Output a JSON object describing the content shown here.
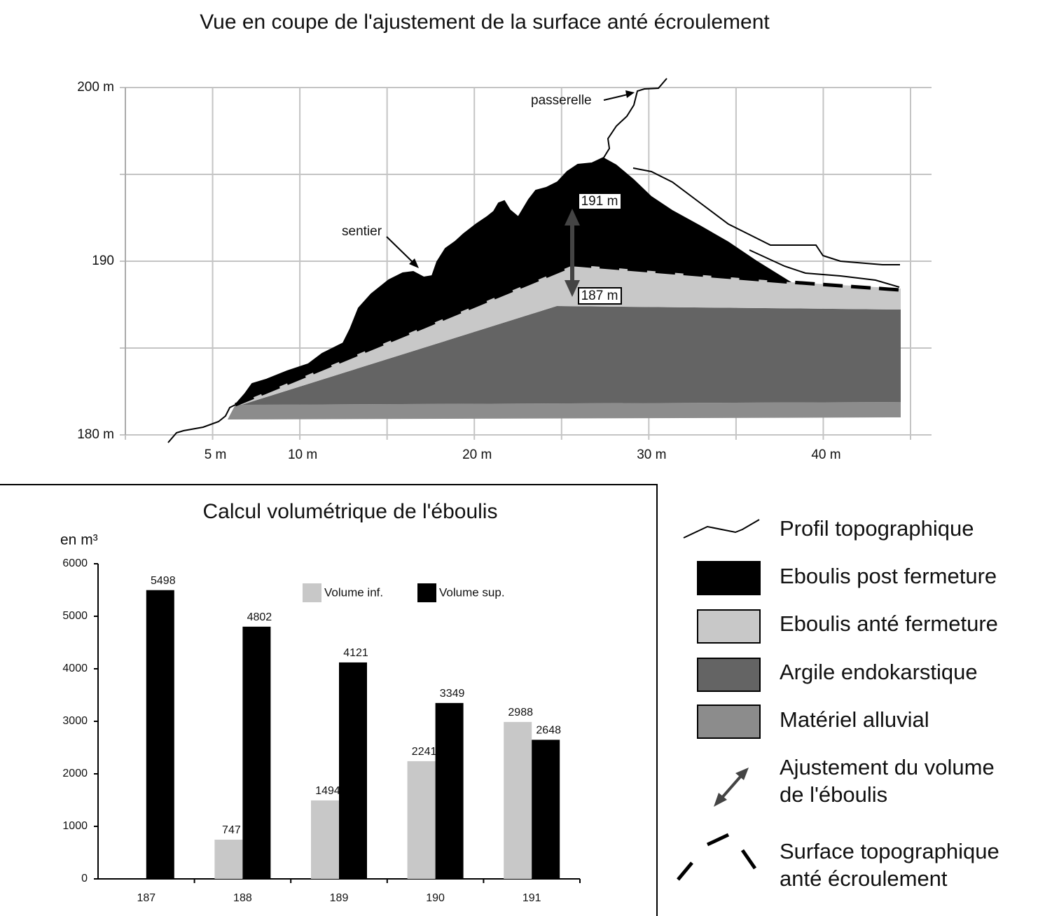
{
  "chart_data": [
    {
      "type": "section",
      "title": "Vue en coupe de l'ajustement de la surface anté écroulement",
      "labels": [
        "passerelle",
        "sentier",
        "191 m",
        "187 m"
      ],
      "xlim": [
        0,
        45
      ],
      "ylim": [
        180,
        200
      ],
      "xticks": [
        {
          "value": 5,
          "label": "5 m"
        },
        {
          "value": 10,
          "label": "10 m"
        },
        {
          "value": 20,
          "label": "20 m"
        },
        {
          "value": 30,
          "label": "30 m"
        },
        {
          "value": 40,
          "label": "40 m"
        }
      ],
      "yticks": [
        {
          "value": 180,
          "label": "180 m"
        },
        190,
        {
          "value": 200,
          "label": "200 m"
        }
      ],
      "xgrid": [
        0,
        5,
        10,
        15,
        20,
        25,
        30,
        35,
        40,
        45
      ],
      "ygrid": [
        180,
        185,
        190,
        195,
        200
      ],
      "grid": true
    },
    {
      "type": "bar",
      "title": "Calcul volumétrique de l'éboulis",
      "y_label": "en m³",
      "categories": [
        "187",
        "188",
        "189",
        "190",
        "191"
      ],
      "series": [
        {
          "name": "Volume inf.",
          "color": "#c8c8c8",
          "values": [
            null,
            747,
            1494,
            2241,
            2988
          ]
        },
        {
          "name": "Volume sup.",
          "color": "#000000",
          "values": [
            5498,
            4802,
            4121,
            3349,
            2648
          ]
        }
      ],
      "ylim": [
        0,
        6000
      ],
      "yticks": [
        0,
        1000,
        2000,
        3000,
        4000,
        5000,
        6000
      ]
    }
  ],
  "legend": {
    "items": [
      {
        "lines": [
          "Profil topographique"
        ]
      },
      {
        "lines": [
          "Eboulis post fermeture"
        ]
      },
      {
        "lines": [
          "Eboulis anté fermeture"
        ]
      },
      {
        "lines": [
          "Argile endokarstique"
        ]
      },
      {
        "lines": [
          "Matériel alluvial"
        ]
      },
      {
        "lines": [
          "Ajustement du volume",
          "de l'éboulis"
        ]
      },
      {
        "lines": [
          "Surface topographique",
          "anté écroulement"
        ]
      }
    ]
  }
}
